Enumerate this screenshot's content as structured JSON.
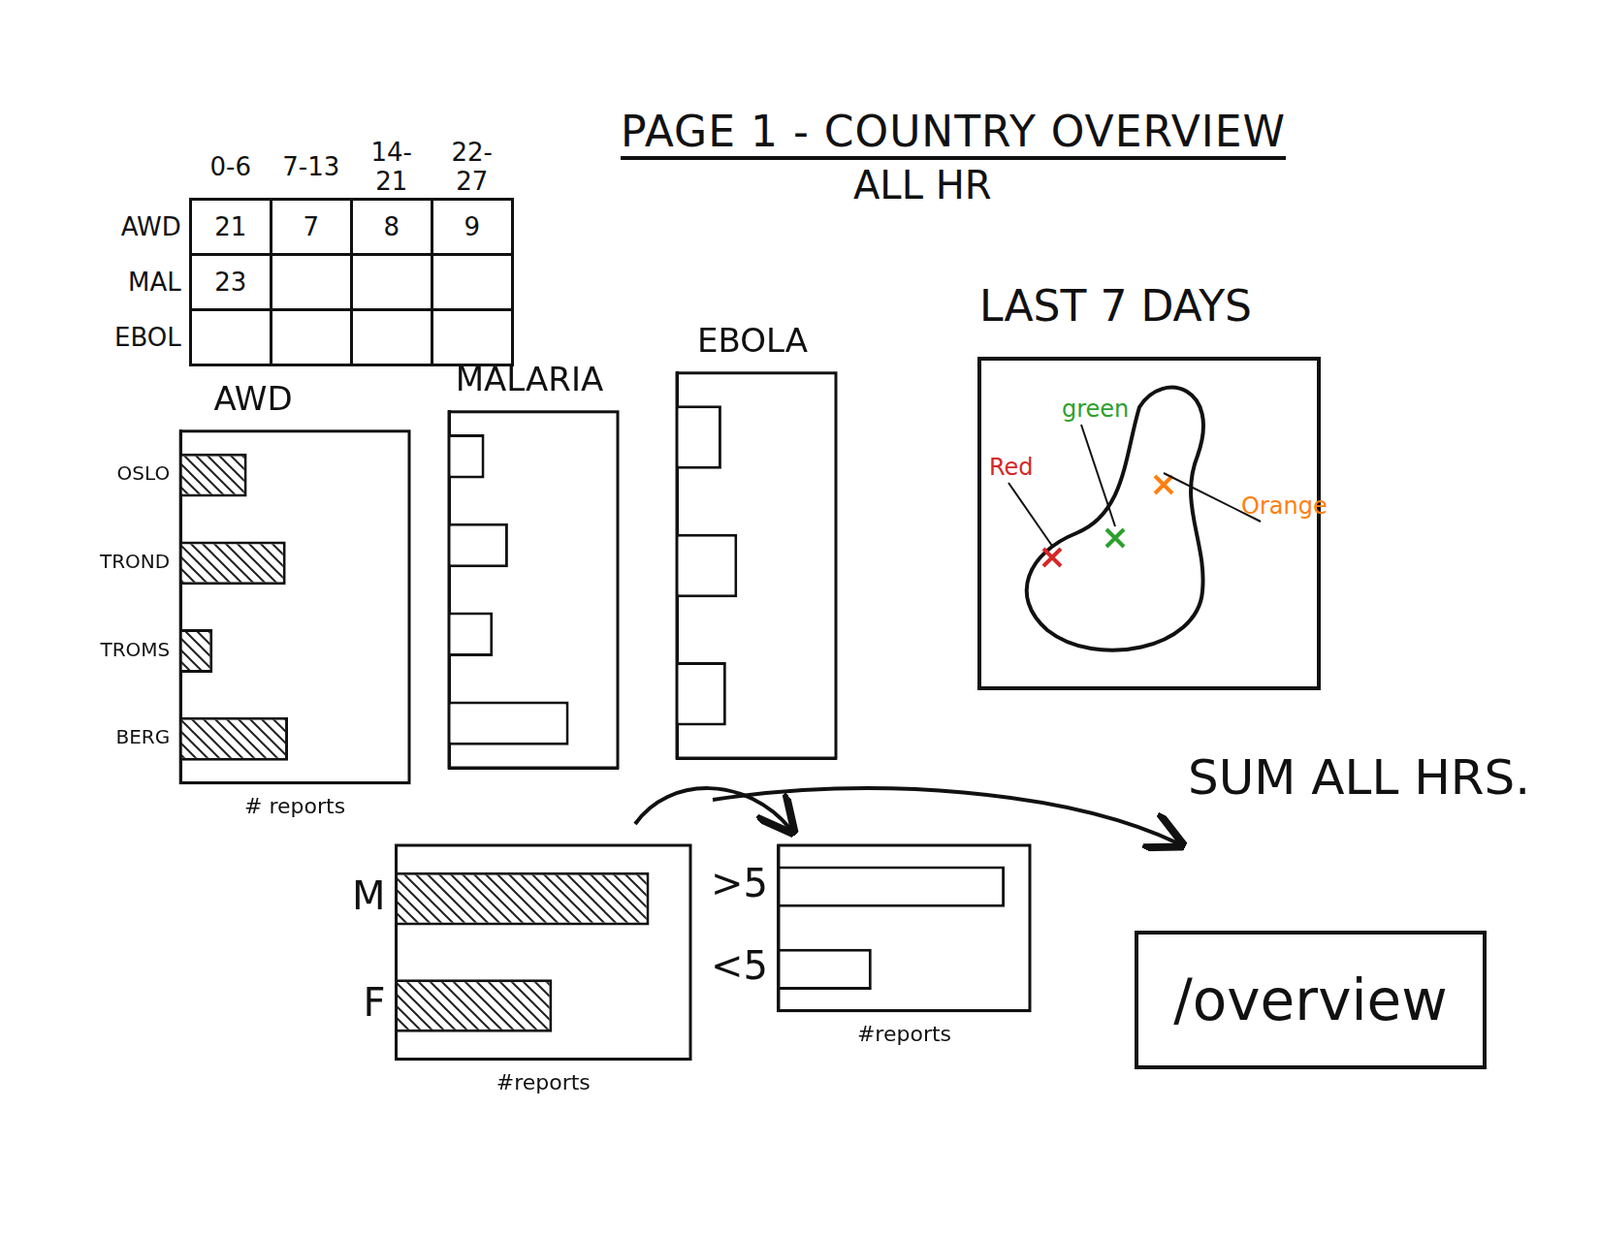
{
  "header": {
    "title": "PAGE 1 - COUNTRY OVERVIEW",
    "subtitle": "ALL HR"
  },
  "table": {
    "columns": [
      "0-6",
      "7-13",
      "14-21",
      "22-27"
    ],
    "rows": [
      {
        "label": "AWD",
        "cells": [
          21,
          7,
          8,
          9
        ]
      },
      {
        "label": "MAL",
        "cells": [
          23,
          null,
          null,
          null
        ]
      },
      {
        "label": "EBOL",
        "cells": [
          null,
          null,
          null,
          null
        ]
      }
    ]
  },
  "chart_data": [
    {
      "type": "bar",
      "title": "AWD",
      "orientation": "horizontal",
      "x_label": "# reports",
      "categories": [
        "OSLO",
        "TROND",
        "TROMS",
        "BERG"
      ],
      "values": [
        29,
        46,
        14,
        47
      ],
      "xlim": [
        0,
        100
      ],
      "tick_labels": "y"
    },
    {
      "type": "bar",
      "title": "MALARIA",
      "orientation": "horizontal",
      "categories": [
        null,
        null,
        null,
        null
      ],
      "values": [
        21,
        35,
        26,
        71
      ],
      "xlim": [
        0,
        100
      ],
      "tick_labels": false
    },
    {
      "type": "bar",
      "title": "EBOLA",
      "orientation": "horizontal",
      "categories": [
        null,
        null,
        null
      ],
      "values": [
        28,
        38,
        31
      ],
      "xlim": [
        0,
        100
      ],
      "tick_labels": false
    },
    {
      "type": "bar",
      "orientation": "horizontal",
      "x_label": "#reports",
      "categories": [
        "M",
        "F"
      ],
      "values": [
        86,
        53
      ],
      "xlim": [
        0,
        100
      ],
      "tick_labels": "y"
    },
    {
      "type": "bar",
      "orientation": "horizontal",
      "x_label": "#reports",
      "categories": [
        ">5",
        "<5"
      ],
      "values": [
        90,
        37
      ],
      "xlim": [
        0,
        100
      ],
      "tick_labels": "y"
    }
  ],
  "map": {
    "title": "LAST 7 DAYS",
    "markers": [
      {
        "label": "Red",
        "color": "#d62728"
      },
      {
        "label": "green",
        "color": "#2ca02c"
      },
      {
        "label": "Orange",
        "color": "#ff7f0e"
      }
    ]
  },
  "note": "SUM ALL HRS.",
  "button": "/overview"
}
